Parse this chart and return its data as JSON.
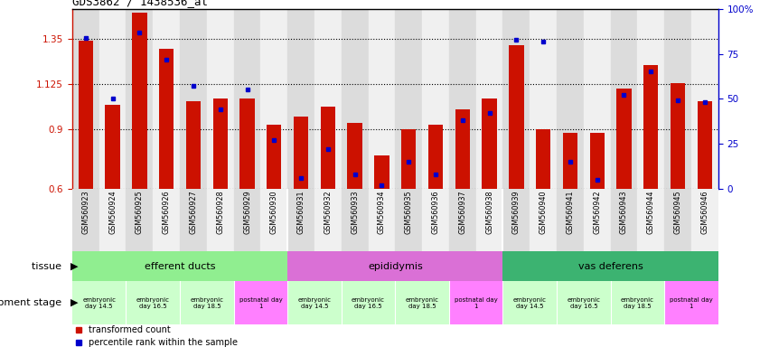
{
  "title": "GDS3862 / 1438536_at",
  "samples": [
    "GSM560923",
    "GSM560924",
    "GSM560925",
    "GSM560926",
    "GSM560927",
    "GSM560928",
    "GSM560929",
    "GSM560930",
    "GSM560931",
    "GSM560932",
    "GSM560933",
    "GSM560934",
    "GSM560935",
    "GSM560936",
    "GSM560937",
    "GSM560938",
    "GSM560939",
    "GSM560940",
    "GSM560941",
    "GSM560942",
    "GSM560943",
    "GSM560944",
    "GSM560945",
    "GSM560946"
  ],
  "red_values": [
    1.34,
    1.02,
    1.48,
    1.3,
    1.04,
    1.05,
    1.05,
    0.92,
    0.96,
    1.01,
    0.93,
    0.77,
    0.9,
    0.92,
    1.0,
    1.05,
    1.32,
    0.9,
    0.88,
    0.88,
    1.1,
    1.22,
    1.13,
    1.04
  ],
  "blue_values": [
    84,
    50,
    87,
    72,
    57,
    44,
    55,
    27,
    6,
    22,
    8,
    2,
    15,
    8,
    38,
    42,
    83,
    82,
    15,
    5,
    52,
    65,
    49,
    48
  ],
  "ylim_left": [
    0.6,
    1.5
  ],
  "ylim_right": [
    0,
    100
  ],
  "yticks_left": [
    0.6,
    0.9,
    1.125,
    1.35
  ],
  "ytick_labels_left": [
    "0.6",
    "0.9",
    "1.125",
    "1.35"
  ],
  "yticks_right": [
    0,
    25,
    50,
    75,
    100
  ],
  "ytick_labels_right": [
    "0",
    "25",
    "50",
    "75",
    "100%"
  ],
  "bar_color": "#CC1100",
  "dot_color": "#0000CC",
  "baseline": 0.6,
  "tissues": [
    {
      "label": "efferent ducts",
      "start": 0,
      "end": 8,
      "color": "#90EE90"
    },
    {
      "label": "epididymis",
      "start": 8,
      "end": 16,
      "color": "#DA70D6"
    },
    {
      "label": "vas deferens",
      "start": 16,
      "end": 24,
      "color": "#3CB371"
    }
  ],
  "dev_stages": [
    {
      "label": "embryonic\nday 14.5",
      "start": 0,
      "end": 2,
      "color": "#CCFFCC"
    },
    {
      "label": "embryonic\nday 16.5",
      "start": 2,
      "end": 4,
      "color": "#CCFFCC"
    },
    {
      "label": "embryonic\nday 18.5",
      "start": 4,
      "end": 6,
      "color": "#CCFFCC"
    },
    {
      "label": "postnatal day\n1",
      "start": 6,
      "end": 8,
      "color": "#FF80FF"
    },
    {
      "label": "embryonic\nday 14.5",
      "start": 8,
      "end": 10,
      "color": "#CCFFCC"
    },
    {
      "label": "embryonic\nday 16.5",
      "start": 10,
      "end": 12,
      "color": "#CCFFCC"
    },
    {
      "label": "embryonic\nday 18.5",
      "start": 12,
      "end": 14,
      "color": "#CCFFCC"
    },
    {
      "label": "postnatal day\n1",
      "start": 14,
      "end": 16,
      "color": "#FF80FF"
    },
    {
      "label": "embryonic\nday 14.5",
      "start": 16,
      "end": 18,
      "color": "#CCFFCC"
    },
    {
      "label": "embryonic\nday 16.5",
      "start": 18,
      "end": 20,
      "color": "#CCFFCC"
    },
    {
      "label": "embryonic\nday 18.5",
      "start": 20,
      "end": 22,
      "color": "#CCFFCC"
    },
    {
      "label": "postnatal day\n1",
      "start": 22,
      "end": 24,
      "color": "#FF80FF"
    }
  ],
  "legend_red": "transformed count",
  "legend_blue": "percentile rank within the sample",
  "tissue_label": "tissue",
  "dev_label": "development stage",
  "col_bg_even": "#DCDCDC",
  "col_bg_odd": "#F0F0F0"
}
